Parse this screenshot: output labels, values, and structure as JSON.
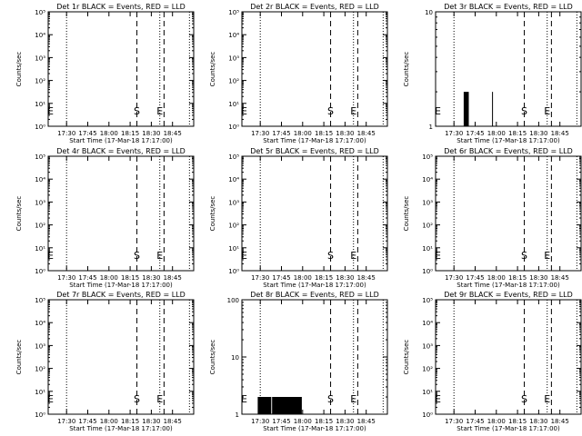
{
  "chart_data": [
    {
      "type": "line",
      "title": "Det 1r BLACK = Events, RED = LLD",
      "xlabel": "Start Time (17-Mar-18 17:17:00)",
      "ylabel": "Counts/sec",
      "x_ticks": [
        "17:30",
        "17:45",
        "18:00",
        "18:15",
        "18:30",
        "18:45"
      ],
      "y_scale": "log",
      "y_ticks": [
        "10⁰",
        "10¹",
        "10²",
        "10³",
        "10⁴",
        "10⁵"
      ],
      "markers": [
        "E",
        "S",
        "E"
      ],
      "events_series": []
    },
    {
      "type": "line",
      "title": "Det 2r BLACK = Events, RED = LLD",
      "xlabel": "Start Time (17-Mar-18 17:17:00)",
      "ylabel": "Counts/sec",
      "x_ticks": [
        "17:30",
        "17:45",
        "18:00",
        "18:15",
        "18:30",
        "18:45"
      ],
      "y_scale": "log",
      "y_ticks": [
        "10⁰",
        "10¹",
        "10²",
        "10³",
        "10⁴",
        "10⁵"
      ],
      "markers": [
        "E",
        "S",
        "E"
      ],
      "events_series": []
    },
    {
      "type": "line",
      "title": "Det 3r BLACK = Events, RED = LLD",
      "xlabel": "Start Time (17-Mar-18 17:17:00)",
      "ylabel": "Counts/sec",
      "x_ticks": [
        "17:30",
        "17:45",
        "18:00",
        "18:15",
        "18:30",
        "18:45"
      ],
      "y_scale": "log",
      "y_ticks": [
        "1",
        "10"
      ],
      "markers": [
        "E",
        "S",
        "E"
      ],
      "events_series": [
        [
          17.615,
          1
        ],
        [
          17.62,
          2
        ],
        [
          17.625,
          1
        ],
        [
          17.63,
          2
        ],
        [
          17.635,
          1
        ],
        [
          17.64,
          2
        ],
        [
          17.645,
          1
        ],
        [
          17.65,
          2
        ],
        [
          17.655,
          1
        ],
        [
          17.66,
          2
        ],
        [
          17.665,
          1
        ],
        [
          17.67,
          2
        ],
        [
          17.675,
          1
        ],
        [
          17.95,
          1
        ],
        [
          17.955,
          2
        ],
        [
          17.96,
          1
        ]
      ]
    },
    {
      "type": "line",
      "title": "Det 4r BLACK = Events, RED = LLD",
      "xlabel": "Start Time (17-Mar-18 17:17:00)",
      "ylabel": "Counts/sec",
      "x_ticks": [
        "17:30",
        "17:45",
        "18:00",
        "18:15",
        "18:30",
        "18:45"
      ],
      "y_scale": "log",
      "y_ticks": [
        "10⁰",
        "10¹",
        "10²",
        "10³",
        "10⁴",
        "10⁵"
      ],
      "markers": [
        "E",
        "S",
        "E"
      ],
      "events_series": []
    },
    {
      "type": "line",
      "title": "Det 5r BLACK = Events, RED = LLD",
      "xlabel": "Start Time (17-Mar-18 17:17:00)",
      "ylabel": "Counts/sec",
      "x_ticks": [
        "17:30",
        "17:45",
        "18:00",
        "18:15",
        "18:30",
        "18:45"
      ],
      "y_scale": "log",
      "y_ticks": [
        "10⁰",
        "10¹",
        "10²",
        "10³",
        "10⁴",
        "10⁵"
      ],
      "markers": [
        "E",
        "S",
        "E"
      ],
      "events_series": []
    },
    {
      "type": "line",
      "title": "Det 6r BLACK = Events, RED = LLD",
      "xlabel": "Start Time (17-Mar-18 17:17:00)",
      "ylabel": "Counts/sec",
      "x_ticks": [
        "17:30",
        "17:45",
        "18:00",
        "18:15",
        "18:30",
        "18:45"
      ],
      "y_scale": "log",
      "y_ticks": [
        "10⁰",
        "10¹",
        "10²",
        "10³",
        "10⁴",
        "10⁵"
      ],
      "markers": [
        "E",
        "S",
        "E"
      ],
      "events_series": []
    },
    {
      "type": "line",
      "title": "Det 7r BLACK = Events, RED = LLD",
      "xlabel": "Start Time (17-Mar-18 17:17:00)",
      "ylabel": "Counts/sec",
      "x_ticks": [
        "17:30",
        "17:45",
        "18:00",
        "18:15",
        "18:30",
        "18:45"
      ],
      "y_scale": "log",
      "y_ticks": [
        "10⁰",
        "10¹",
        "10²",
        "10³",
        "10⁴",
        "10⁵"
      ],
      "markers": [
        "E",
        "S",
        "E"
      ],
      "events_series": []
    },
    {
      "type": "line",
      "title": "Det 8r BLACK = Events, RED = LLD",
      "xlabel": "Start Time (17-Mar-18 17:17:00)",
      "ylabel": "Counts/sec",
      "x_ticks": [
        "17:30",
        "17:45",
        "18:00",
        "18:15",
        "18:30",
        "18:45"
      ],
      "y_scale": "log",
      "y_ticks": [
        "1",
        "10",
        "100"
      ],
      "markers": [
        "E",
        "S",
        "E"
      ],
      "events_series": [
        [
          17.47,
          1
        ],
        [
          17.475,
          2
        ],
        [
          17.48,
          1
        ],
        [
          17.485,
          2
        ],
        [
          17.49,
          1
        ],
        [
          17.495,
          2
        ],
        [
          17.5,
          1
        ],
        [
          17.505,
          2
        ],
        [
          17.51,
          1
        ],
        [
          17.515,
          2
        ],
        [
          17.52,
          1
        ],
        [
          17.525,
          2
        ],
        [
          17.53,
          1
        ],
        [
          17.535,
          2
        ],
        [
          17.54,
          1
        ],
        [
          17.545,
          2
        ],
        [
          17.55,
          1
        ],
        [
          17.555,
          2
        ],
        [
          17.56,
          1
        ],
        [
          17.565,
          2
        ],
        [
          17.57,
          1
        ],
        [
          17.575,
          2
        ],
        [
          17.58,
          1
        ],
        [
          17.585,
          2
        ],
        [
          17.59,
          1
        ],
        [
          17.595,
          2
        ],
        [
          17.6,
          1
        ],
        [
          17.605,
          2
        ],
        [
          17.61,
          1
        ],
        [
          17.615,
          2
        ],
        [
          17.62,
          1
        ],
        [
          17.625,
          2
        ],
        [
          17.63,
          1
        ],
        [
          17.64,
          1
        ],
        [
          17.645,
          2
        ],
        [
          17.65,
          1
        ],
        [
          17.655,
          2
        ],
        [
          17.66,
          1
        ],
        [
          17.665,
          2
        ],
        [
          17.67,
          1
        ],
        [
          17.675,
          2
        ],
        [
          17.68,
          1
        ],
        [
          17.685,
          2
        ],
        [
          17.69,
          1
        ],
        [
          17.695,
          2
        ],
        [
          17.7,
          1
        ],
        [
          17.705,
          2
        ],
        [
          17.71,
          1
        ],
        [
          17.715,
          2
        ],
        [
          17.72,
          1
        ],
        [
          17.725,
          2
        ],
        [
          17.73,
          1
        ],
        [
          17.735,
          2
        ],
        [
          17.74,
          1
        ],
        [
          17.745,
          2
        ],
        [
          17.75,
          1
        ],
        [
          17.755,
          2
        ],
        [
          17.76,
          1
        ],
        [
          17.765,
          2
        ],
        [
          17.77,
          1
        ],
        [
          17.775,
          2
        ],
        [
          17.78,
          1
        ],
        [
          17.785,
          2
        ],
        [
          17.79,
          1
        ],
        [
          17.795,
          2
        ],
        [
          17.8,
          1
        ],
        [
          17.805,
          2
        ],
        [
          17.81,
          1
        ],
        [
          17.815,
          2
        ],
        [
          17.82,
          1
        ],
        [
          17.825,
          2
        ],
        [
          17.83,
          1
        ],
        [
          17.835,
          2
        ],
        [
          17.84,
          1
        ],
        [
          17.845,
          2
        ],
        [
          17.85,
          1
        ],
        [
          17.855,
          2
        ],
        [
          17.86,
          1
        ],
        [
          17.865,
          2
        ],
        [
          17.87,
          1
        ],
        [
          17.875,
          2
        ],
        [
          17.88,
          1
        ],
        [
          17.885,
          2
        ],
        [
          17.89,
          1
        ],
        [
          17.895,
          2
        ],
        [
          17.9,
          1
        ],
        [
          17.905,
          2
        ],
        [
          17.91,
          1
        ],
        [
          17.915,
          2
        ],
        [
          17.92,
          1
        ],
        [
          17.925,
          2
        ],
        [
          17.93,
          1
        ],
        [
          17.935,
          2
        ],
        [
          17.94,
          1
        ],
        [
          17.945,
          2
        ],
        [
          17.95,
          1
        ],
        [
          17.955,
          2
        ],
        [
          17.96,
          1
        ],
        [
          17.965,
          2
        ],
        [
          17.97,
          1
        ],
        [
          17.975,
          2
        ],
        [
          17.98,
          1
        ],
        [
          17.985,
          2
        ],
        [
          17.99,
          1
        ]
      ]
    },
    {
      "type": "line",
      "title": "Det 9r BLACK = Events, RED = LLD",
      "xlabel": "Start Time (17-Mar-18 17:17:00)",
      "ylabel": "Counts/sec",
      "x_ticks": [
        "17:30",
        "17:45",
        "18:00",
        "18:15",
        "18:30",
        "18:45"
      ],
      "y_scale": "log",
      "y_ticks": [
        "10⁰",
        "10¹",
        "10²",
        "10³",
        "10⁴",
        "10⁵"
      ],
      "markers": [
        "E",
        "S",
        "E"
      ],
      "events_series": []
    }
  ]
}
